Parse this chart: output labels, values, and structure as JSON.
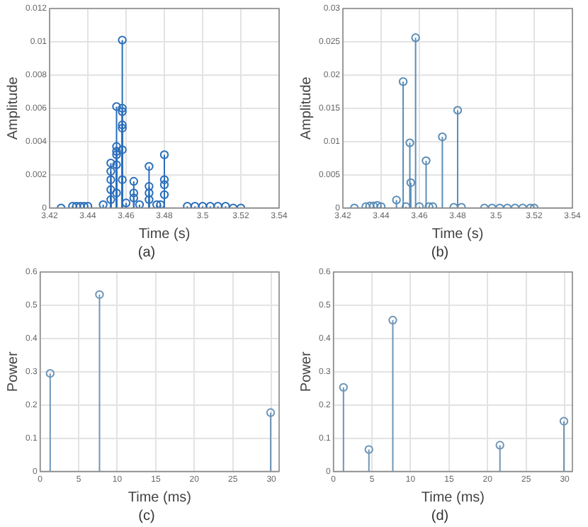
{
  "chart_data": [
    {
      "type": "lollipop",
      "xlabel": "Time (s)",
      "ylabel": "Amplitude",
      "annotations": [
        "(a)"
      ],
      "grid": true,
      "marker": "circle",
      "legend": false,
      "xlim": [
        3.42,
        3.54
      ],
      "xticks": [
        3.42,
        3.44,
        3.46,
        3.48,
        3.5,
        3.52,
        3.54
      ],
      "ylim": [
        0,
        0.012
      ],
      "yticks": [
        0,
        0.002,
        0.004,
        0.006,
        0.008,
        0.01,
        0.012
      ],
      "x": [
        3.426,
        3.432,
        3.434,
        3.436,
        3.438,
        3.44,
        3.448,
        3.452,
        3.452,
        3.452,
        3.452,
        3.452,
        3.455,
        3.455,
        3.455,
        3.455,
        3.455,
        3.455,
        3.458,
        3.458,
        3.458,
        3.458,
        3.458,
        3.458,
        3.458,
        3.46,
        3.464,
        3.464,
        3.464,
        3.467,
        3.472,
        3.472,
        3.472,
        3.472,
        3.476,
        3.478,
        3.48,
        3.48,
        3.48,
        3.48,
        3.492,
        3.496,
        3.5,
        3.504,
        3.508,
        3.512,
        3.516,
        3.52
      ],
      "series": [
        {
          "color": "#2a6ebb",
          "values": [
            0,
            0.0001,
            0.0001,
            0.0001,
            0.0001,
            0.0001,
            0.0002,
            0.0027,
            0.0022,
            0.0017,
            0.0011,
            0.0005,
            0.0061,
            0.0037,
            0.0034,
            0.0032,
            0.0026,
            0.0009,
            0.0101,
            0.006,
            0.0058,
            0.005,
            0.0048,
            0.0035,
            0.0017,
            0.0003,
            0.0016,
            0.0009,
            0.0006,
            0.0002,
            0.0025,
            0.0013,
            0.0009,
            0.0005,
            0.0002,
            0.0002,
            0.0032,
            0.0017,
            0.0014,
            0.0008,
            0.0001,
            0.0001,
            0.0001,
            0.0001,
            0.0001,
            0.0001,
            0,
            0
          ]
        }
      ]
    },
    {
      "type": "lollipop",
      "xlabel": "Time (s)",
      "ylabel": "Amplitude",
      "annotations": [
        "(b)"
      ],
      "grid": true,
      "marker": "circle",
      "legend": false,
      "xlim": [
        3.42,
        3.54
      ],
      "xticks": [
        3.42,
        3.44,
        3.46,
        3.48,
        3.5,
        3.52,
        3.54
      ],
      "ylim": [
        0,
        0.03
      ],
      "yticks": [
        0,
        0.005,
        0.01,
        0.015,
        0.02,
        0.025,
        0.03
      ],
      "x": [
        3.426,
        3.432,
        3.434,
        3.436,
        3.438,
        3.44,
        3.448,
        3.4515,
        3.453,
        3.455,
        3.4555,
        3.458,
        3.46,
        3.4635,
        3.465,
        3.467,
        3.472,
        3.478,
        3.48,
        3.482,
        3.494,
        3.498,
        3.502,
        3.506,
        3.51,
        3.514,
        3.518,
        3.52
      ],
      "series": [
        {
          "color": "#5b8db8",
          "values": [
            0,
            0.0002,
            0.0003,
            0.0003,
            0.0004,
            0.0002,
            0.0012,
            0.019,
            0.0002,
            0.0098,
            0.0038,
            0.0256,
            0.0002,
            0.0071,
            0.0002,
            0.0002,
            0.0107,
            0.0001,
            0.0147,
            0.0001,
            0,
            0,
            0,
            0,
            0,
            0,
            0,
            0
          ]
        }
      ]
    },
    {
      "type": "lollipop",
      "xlabel": "Time (ms)",
      "ylabel": "Power",
      "annotations": [
        "(c)"
      ],
      "grid": true,
      "marker": "circle",
      "legend": false,
      "xlim": [
        0,
        31
      ],
      "xticks": [
        0,
        5,
        10,
        15,
        20,
        25,
        30
      ],
      "ylim": [
        0,
        0.6
      ],
      "yticks": [
        0,
        0.1,
        0.2,
        0.3,
        0.4,
        0.5,
        0.6
      ],
      "x": [
        1.3,
        7.7,
        29.9
      ],
      "series": [
        {
          "color": "#6f96b8",
          "values": [
            0.295,
            0.532,
            0.177
          ]
        }
      ]
    },
    {
      "type": "lollipop",
      "xlabel": "Time (ms)",
      "ylabel": "Power",
      "annotations": [
        "(d)"
      ],
      "grid": true,
      "marker": "circle",
      "legend": false,
      "xlim": [
        0,
        31
      ],
      "xticks": [
        0,
        5,
        10,
        15,
        20,
        25,
        30
      ],
      "ylim": [
        0,
        0.6
      ],
      "yticks": [
        0,
        0.1,
        0.2,
        0.3,
        0.4,
        0.5,
        0.6
      ],
      "x": [
        1.3,
        4.6,
        7.7,
        21.6,
        29.9
      ],
      "series": [
        {
          "color": "#6f96b8",
          "values": [
            0.253,
            0.066,
            0.455,
            0.079,
            0.151
          ]
        }
      ]
    }
  ]
}
